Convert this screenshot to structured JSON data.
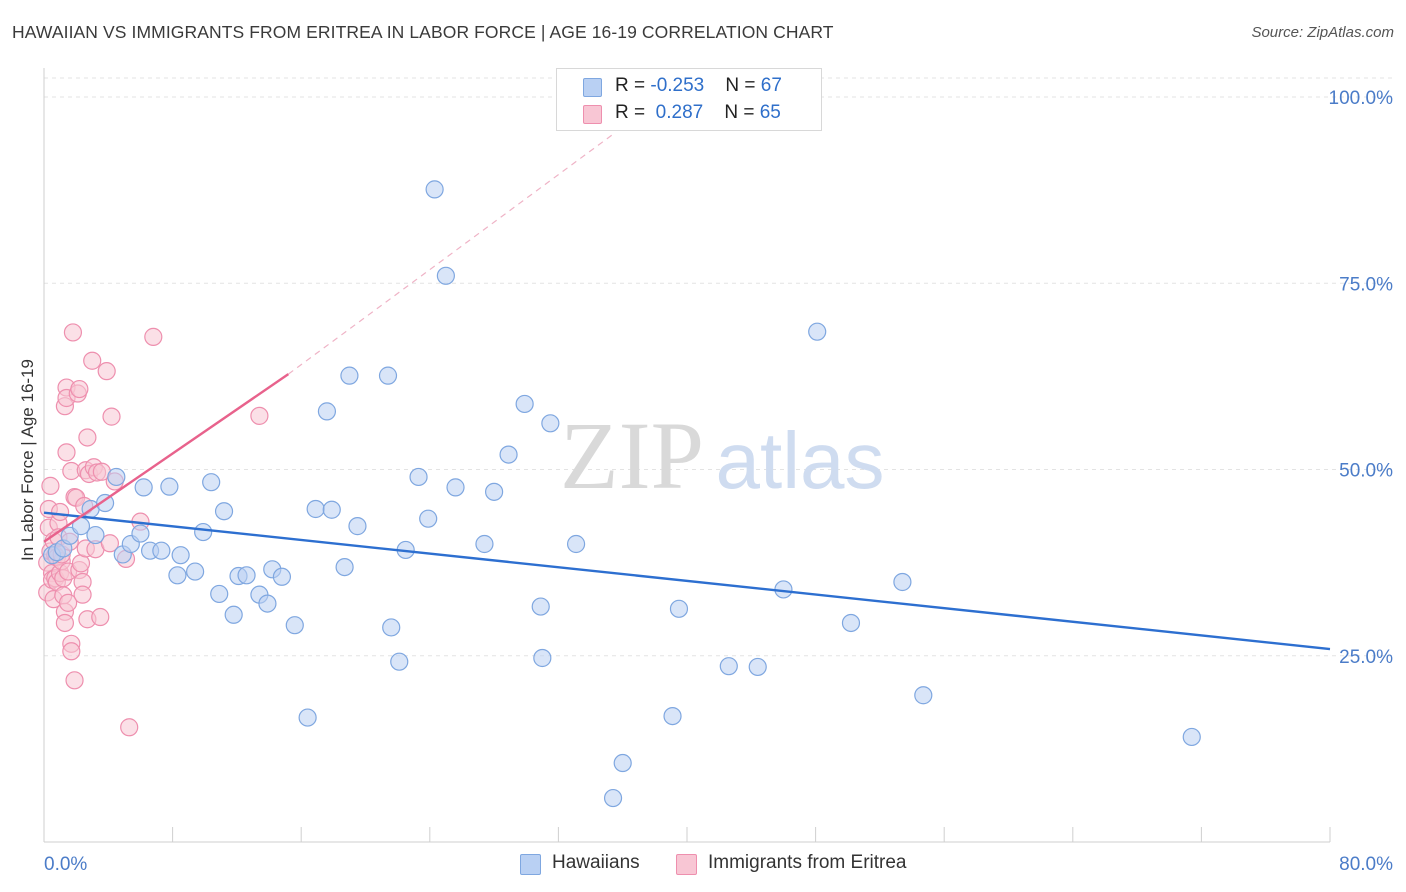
{
  "title": "HAWAIIAN VS IMMIGRANTS FROM ERITREA IN LABOR FORCE | AGE 16-19 CORRELATION CHART",
  "source": "Source: ZipAtlas.com",
  "watermark": {
    "zip": "ZIP",
    "atlas": "atlas"
  },
  "colors": {
    "blue_fill": "#b9d0f3",
    "blue_stroke": "#7fa7e0",
    "blue_line": "#2d6fd0",
    "pink_fill": "#f8c6d4",
    "pink_stroke": "#ee8fae",
    "pink_line": "#e8628c",
    "axis_label": "#4b7cc8"
  },
  "legend": {
    "rows": [
      {
        "r_label": "R = ",
        "r_value": "-0.253",
        "n_label": "N = ",
        "n_value": "67"
      },
      {
        "r_label": "R = ",
        "r_value": " 0.287",
        "n_label": "N = ",
        "n_value": "65"
      }
    ]
  },
  "bottom_legend": {
    "hawaiians": "Hawaiians",
    "eritrea": "Immigrants from Eritrea"
  },
  "chart_data": {
    "type": "scatter",
    "title": "HAWAIIAN VS IMMIGRANTS FROM ERITREA IN LABOR FORCE | AGE 16-19 CORRELATION CHART",
    "xlabel": "",
    "ylabel": "In Labor Force | Age 16-19",
    "xlim": [
      0,
      80
    ],
    "ylim": [
      0,
      102
    ],
    "x_ticks_labeled": [
      {
        "value": 0,
        "label": "0.0%"
      },
      {
        "value": 80,
        "label": "80.0%"
      }
    ],
    "y_ticks": [
      {
        "value": 25,
        "label": "25.0%"
      },
      {
        "value": 50,
        "label": "50.0%"
      },
      {
        "value": 75,
        "label": "75.0%"
      },
      {
        "value": 100,
        "label": "100.0%"
      }
    ],
    "grid": "horizontal dashed",
    "legend_position": "top-center",
    "series": [
      {
        "name": "Hawaiians",
        "R": -0.253,
        "N": 67,
        "trend": {
          "x": [
            0,
            80
          ],
          "y": [
            44.2,
            25.9
          ]
        },
        "points": [
          [
            0.5,
            38.5
          ],
          [
            0.8,
            38.9
          ],
          [
            1.2,
            39.4
          ],
          [
            1.6,
            41.1
          ],
          [
            2.3,
            42.4
          ],
          [
            2.9,
            44.7
          ],
          [
            3.2,
            41.2
          ],
          [
            3.8,
            45.5
          ],
          [
            4.5,
            49.0
          ],
          [
            4.9,
            38.6
          ],
          [
            5.4,
            40.0
          ],
          [
            6.0,
            41.4
          ],
          [
            6.2,
            47.6
          ],
          [
            6.6,
            39.1
          ],
          [
            7.3,
            39.1
          ],
          [
            7.8,
            47.7
          ],
          [
            8.3,
            35.8
          ],
          [
            8.5,
            38.5
          ],
          [
            9.4,
            36.3
          ],
          [
            9.9,
            41.6
          ],
          [
            10.4,
            48.3
          ],
          [
            10.9,
            33.3
          ],
          [
            11.2,
            44.4
          ],
          [
            11.8,
            30.5
          ],
          [
            12.1,
            35.7
          ],
          [
            12.6,
            35.8
          ],
          [
            13.4,
            33.2
          ],
          [
            13.9,
            32.0
          ],
          [
            14.2,
            36.6
          ],
          [
            14.8,
            35.6
          ],
          [
            15.6,
            29.1
          ],
          [
            16.4,
            16.7
          ],
          [
            16.9,
            44.7
          ],
          [
            17.6,
            57.8
          ],
          [
            17.9,
            44.6
          ],
          [
            18.7,
            36.9
          ],
          [
            19.0,
            62.6
          ],
          [
            19.5,
            42.4
          ],
          [
            21.4,
            62.6
          ],
          [
            21.6,
            28.8
          ],
          [
            22.1,
            24.2
          ],
          [
            22.5,
            39.2
          ],
          [
            23.3,
            49.0
          ],
          [
            23.9,
            43.4
          ],
          [
            24.3,
            87.6
          ],
          [
            25.0,
            76.0
          ],
          [
            25.6,
            47.6
          ],
          [
            27.4,
            40.0
          ],
          [
            28.0,
            47.0
          ],
          [
            28.9,
            52.0
          ],
          [
            29.9,
            58.8
          ],
          [
            30.9,
            31.6
          ],
          [
            31.0,
            24.7
          ],
          [
            31.5,
            56.2
          ],
          [
            33.1,
            40.0
          ],
          [
            35.4,
            5.9
          ],
          [
            36.0,
            10.6
          ],
          [
            39.1,
            16.9
          ],
          [
            39.5,
            31.3
          ],
          [
            42.6,
            23.6
          ],
          [
            44.4,
            23.5
          ],
          [
            46.0,
            33.9
          ],
          [
            48.1,
            68.5
          ],
          [
            50.2,
            29.4
          ],
          [
            53.4,
            34.9
          ],
          [
            54.7,
            19.7
          ],
          [
            71.4,
            14.1
          ]
        ]
      },
      {
        "name": "Immigrants from Eritrea",
        "R": 0.287,
        "N": 65,
        "trend": {
          "x": [
            0,
            15.2
          ],
          "y": [
            40.3,
            62.8
          ]
        },
        "trend_extended": {
          "x": [
            15.2,
            35.4
          ],
          "y": [
            62.8,
            95.0
          ]
        },
        "points": [
          [
            0.2,
            33.5
          ],
          [
            0.2,
            37.5
          ],
          [
            0.3,
            42.2
          ],
          [
            0.3,
            44.7
          ],
          [
            0.4,
            47.8
          ],
          [
            0.4,
            39.0
          ],
          [
            0.5,
            36.1
          ],
          [
            0.5,
            35.2
          ],
          [
            0.6,
            40.4
          ],
          [
            0.6,
            32.6
          ],
          [
            0.7,
            38.5
          ],
          [
            0.7,
            35.4
          ],
          [
            0.8,
            34.9
          ],
          [
            0.8,
            38.2
          ],
          [
            0.9,
            42.8
          ],
          [
            0.9,
            40.9
          ],
          [
            1.0,
            44.3
          ],
          [
            1.0,
            36.1
          ],
          [
            1.1,
            37.7
          ],
          [
            1.1,
            38.6
          ],
          [
            1.2,
            35.4
          ],
          [
            1.2,
            33.1
          ],
          [
            1.3,
            30.9
          ],
          [
            1.3,
            29.4
          ],
          [
            1.3,
            58.5
          ],
          [
            1.4,
            61.0
          ],
          [
            1.4,
            59.6
          ],
          [
            1.4,
            52.3
          ],
          [
            1.5,
            32.1
          ],
          [
            1.5,
            36.3
          ],
          [
            1.6,
            40.3
          ],
          [
            1.7,
            26.6
          ],
          [
            1.7,
            25.6
          ],
          [
            1.7,
            49.8
          ],
          [
            1.8,
            68.4
          ],
          [
            1.9,
            46.3
          ],
          [
            1.9,
            21.7
          ],
          [
            2.0,
            46.2
          ],
          [
            2.1,
            60.2
          ],
          [
            2.2,
            60.8
          ],
          [
            2.2,
            36.5
          ],
          [
            2.3,
            37.4
          ],
          [
            2.4,
            34.9
          ],
          [
            2.4,
            33.2
          ],
          [
            2.5,
            45.1
          ],
          [
            2.6,
            49.9
          ],
          [
            2.6,
            39.4
          ],
          [
            2.7,
            54.3
          ],
          [
            2.7,
            29.9
          ],
          [
            2.8,
            49.4
          ],
          [
            3.0,
            64.6
          ],
          [
            3.1,
            50.3
          ],
          [
            3.2,
            39.3
          ],
          [
            3.3,
            49.6
          ],
          [
            3.5,
            30.2
          ],
          [
            3.6,
            49.7
          ],
          [
            3.9,
            63.2
          ],
          [
            4.1,
            40.1
          ],
          [
            4.2,
            57.1
          ],
          [
            4.4,
            48.4
          ],
          [
            5.1,
            38.0
          ],
          [
            5.3,
            15.4
          ],
          [
            6.0,
            43.0
          ],
          [
            6.8,
            67.8
          ],
          [
            13.4,
            57.2
          ]
        ]
      }
    ]
  }
}
